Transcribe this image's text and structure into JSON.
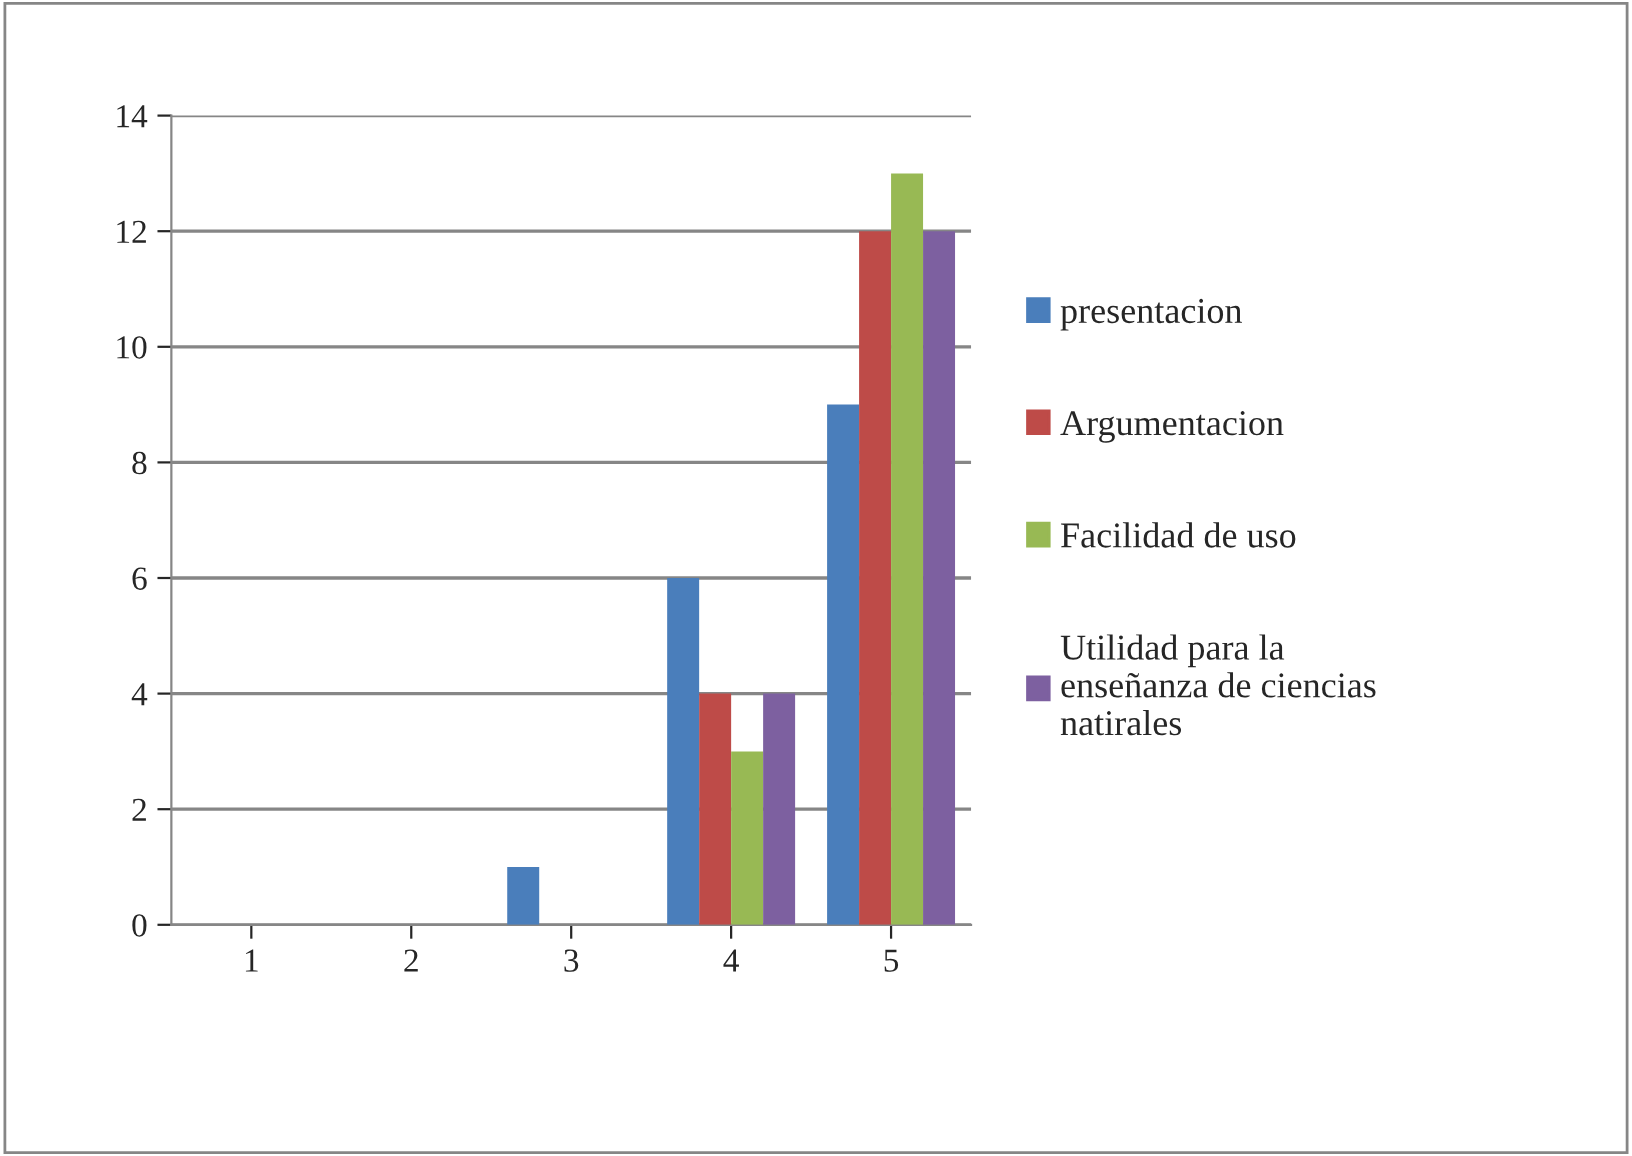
{
  "chart_data": {
    "type": "bar",
    "categories": [
      "1",
      "2",
      "3",
      "4",
      "5"
    ],
    "series": [
      {
        "name": "presentacion",
        "color": "#4a7ebb",
        "values": [
          0,
          0,
          1,
          6,
          9
        ]
      },
      {
        "name": "Argumentacion",
        "color": "#be4b48",
        "values": [
          0,
          0,
          0,
          4,
          12
        ]
      },
      {
        "name": "Facilidad de uso",
        "color": "#98b954",
        "values": [
          0,
          0,
          0,
          3,
          13
        ]
      },
      {
        "name": "Utilidad para la\nenseñanza de ciencias\nnatirales",
        "color": "#7d60a0",
        "values": [
          0,
          0,
          0,
          4,
          12
        ]
      }
    ],
    "ylim": [
      0,
      14
    ],
    "yticks": [
      0,
      2,
      4,
      6,
      8,
      10,
      12,
      14
    ],
    "grid": "y",
    "legend": "right"
  }
}
